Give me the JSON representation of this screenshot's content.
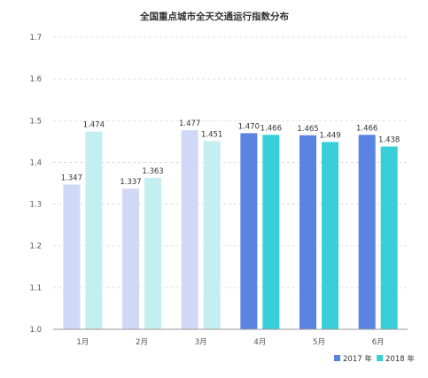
{
  "chart_data": {
    "type": "bar",
    "title": "全国重点城市全天交通运行指数分布",
    "categories": [
      "1月",
      "2月",
      "3月",
      "4月",
      "5月",
      "6月"
    ],
    "series": [
      {
        "name": "2017 年",
        "values": [
          1.347,
          1.337,
          1.477,
          1.47,
          1.465,
          1.466
        ],
        "labels": [
          "1.347",
          "1.337",
          "1.477",
          "1.470",
          "1.465",
          "1.466"
        ]
      },
      {
        "name": "2018 年",
        "values": [
          1.474,
          1.363,
          1.451,
          1.466,
          1.449,
          1.438
        ],
        "labels": [
          "1.474",
          "1.363",
          "1.451",
          "1.466",
          "1.449",
          "1.438"
        ]
      }
    ],
    "ylim": [
      1.0,
      1.7
    ],
    "yticks": [
      "1.0",
      "1.1",
      "1.2",
      "1.3",
      "1.4",
      "1.5",
      "1.6",
      "1.7"
    ],
    "grid": true,
    "legend_position": "bottom-right",
    "colors": {
      "2017_light": "#cfd9f7",
      "2017_dark": "#5b84e2",
      "2018_light": "#c4eff1",
      "2018_dark": "#39cfd9"
    },
    "highlight_from_category_index": 3
  }
}
